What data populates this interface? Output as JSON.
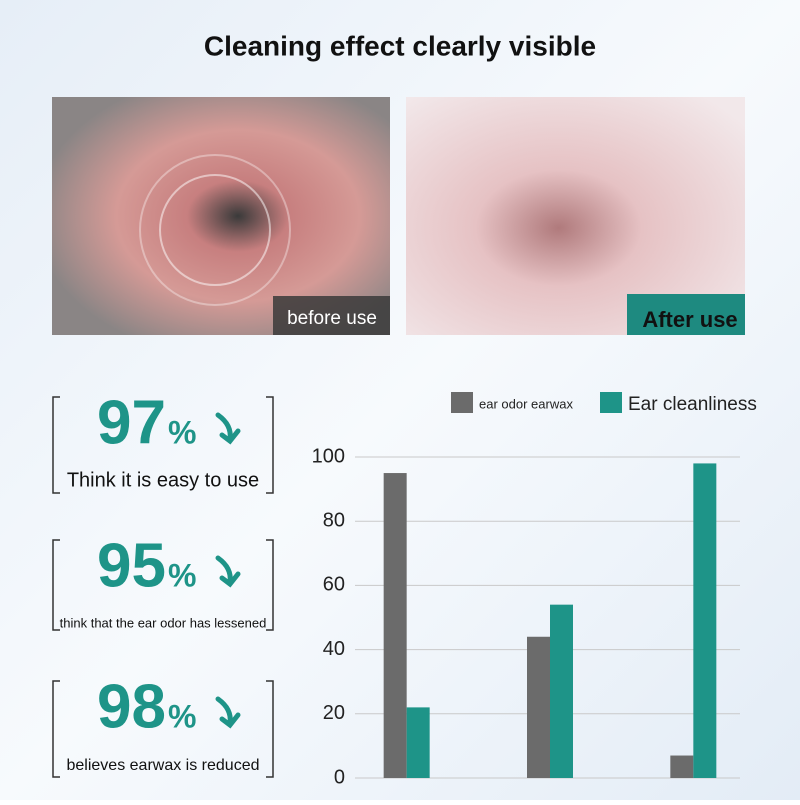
{
  "title": "Cleaning effect clearly visible",
  "photos": [
    {
      "label": "before use"
    },
    {
      "label": "After use"
    }
  ],
  "stats": [
    {
      "value": 97,
      "unit": "%",
      "text": "Think it is easy to use"
    },
    {
      "value": 95,
      "unit": "%",
      "text": "think that the ear odor has lessened"
    },
    {
      "value": 98,
      "unit": "%",
      "text": "believes earwax is reduced"
    }
  ],
  "chart_data": {
    "type": "bar",
    "categories": [
      null,
      null,
      null
    ],
    "series": [
      {
        "name": "ear odor earwax",
        "color": "#6b6b6b",
        "values": [
          95,
          44,
          7
        ]
      },
      {
        "name": "Ear cleanliness",
        "color": "#1e9488",
        "values": [
          22,
          54,
          98
        ]
      }
    ],
    "ylim": [
      0,
      100
    ],
    "yticks": [
      0,
      20,
      40,
      60,
      80,
      100
    ],
    "grid": true
  }
}
